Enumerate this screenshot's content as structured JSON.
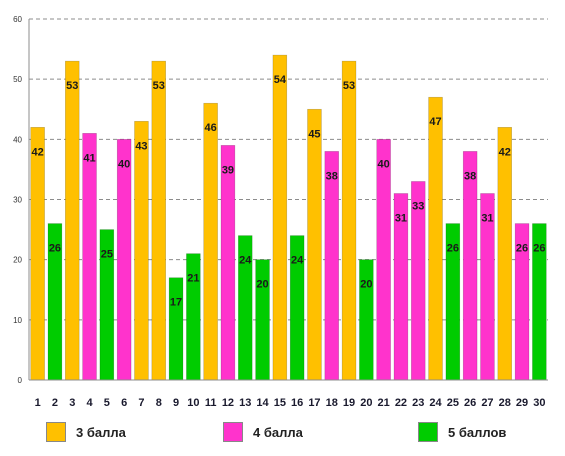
{
  "chart_data": {
    "type": "bar",
    "title": "",
    "xlabel": "",
    "ylabel": "",
    "ylim": [
      0,
      60
    ],
    "yticks": [
      "0",
      "10",
      "20",
      "30",
      "40",
      "50",
      "60"
    ],
    "grid": true,
    "legend_position": "bottom",
    "categories": [
      "1",
      "2",
      "3",
      "4",
      "5",
      "6",
      "7",
      "8",
      "9",
      "10",
      "11",
      "12",
      "13",
      "14",
      "15",
      "16",
      "17",
      "18",
      "19",
      "20",
      "21",
      "22",
      "23",
      "24",
      "25",
      "26",
      "27",
      "28",
      "29",
      "30"
    ],
    "values": [
      42,
      26,
      53,
      41,
      25,
      40,
      43,
      53,
      17,
      21,
      46,
      39,
      24,
      20,
      54,
      24,
      45,
      38,
      53,
      20,
      40,
      31,
      33,
      47,
      26,
      38,
      31,
      42,
      26,
      26
    ],
    "groups": [
      "3 балла",
      "5 баллов",
      "3 балла",
      "4 балла",
      "5 баллов",
      "4 балла",
      "3 балла",
      "3 балла",
      "5 баллов",
      "5 баллов",
      "3 балла",
      "4 балла",
      "5 баллов",
      "5 баллов",
      "3 балла",
      "5 баллов",
      "3 балла",
      "4 балла",
      "3 балла",
      "5 баллов",
      "4 балла",
      "4 балла",
      "4 балла",
      "3 балла",
      "5 баллов",
      "4 балла",
      "4 балла",
      "3 балла",
      "4 балла",
      "5 баллов"
    ],
    "legend": [
      {
        "name": "3 балла",
        "color": "#FFC000"
      },
      {
        "name": "4 балла",
        "color": "#FF33CC"
      },
      {
        "name": "5 баллов",
        "color": "#00CC00"
      }
    ]
  }
}
